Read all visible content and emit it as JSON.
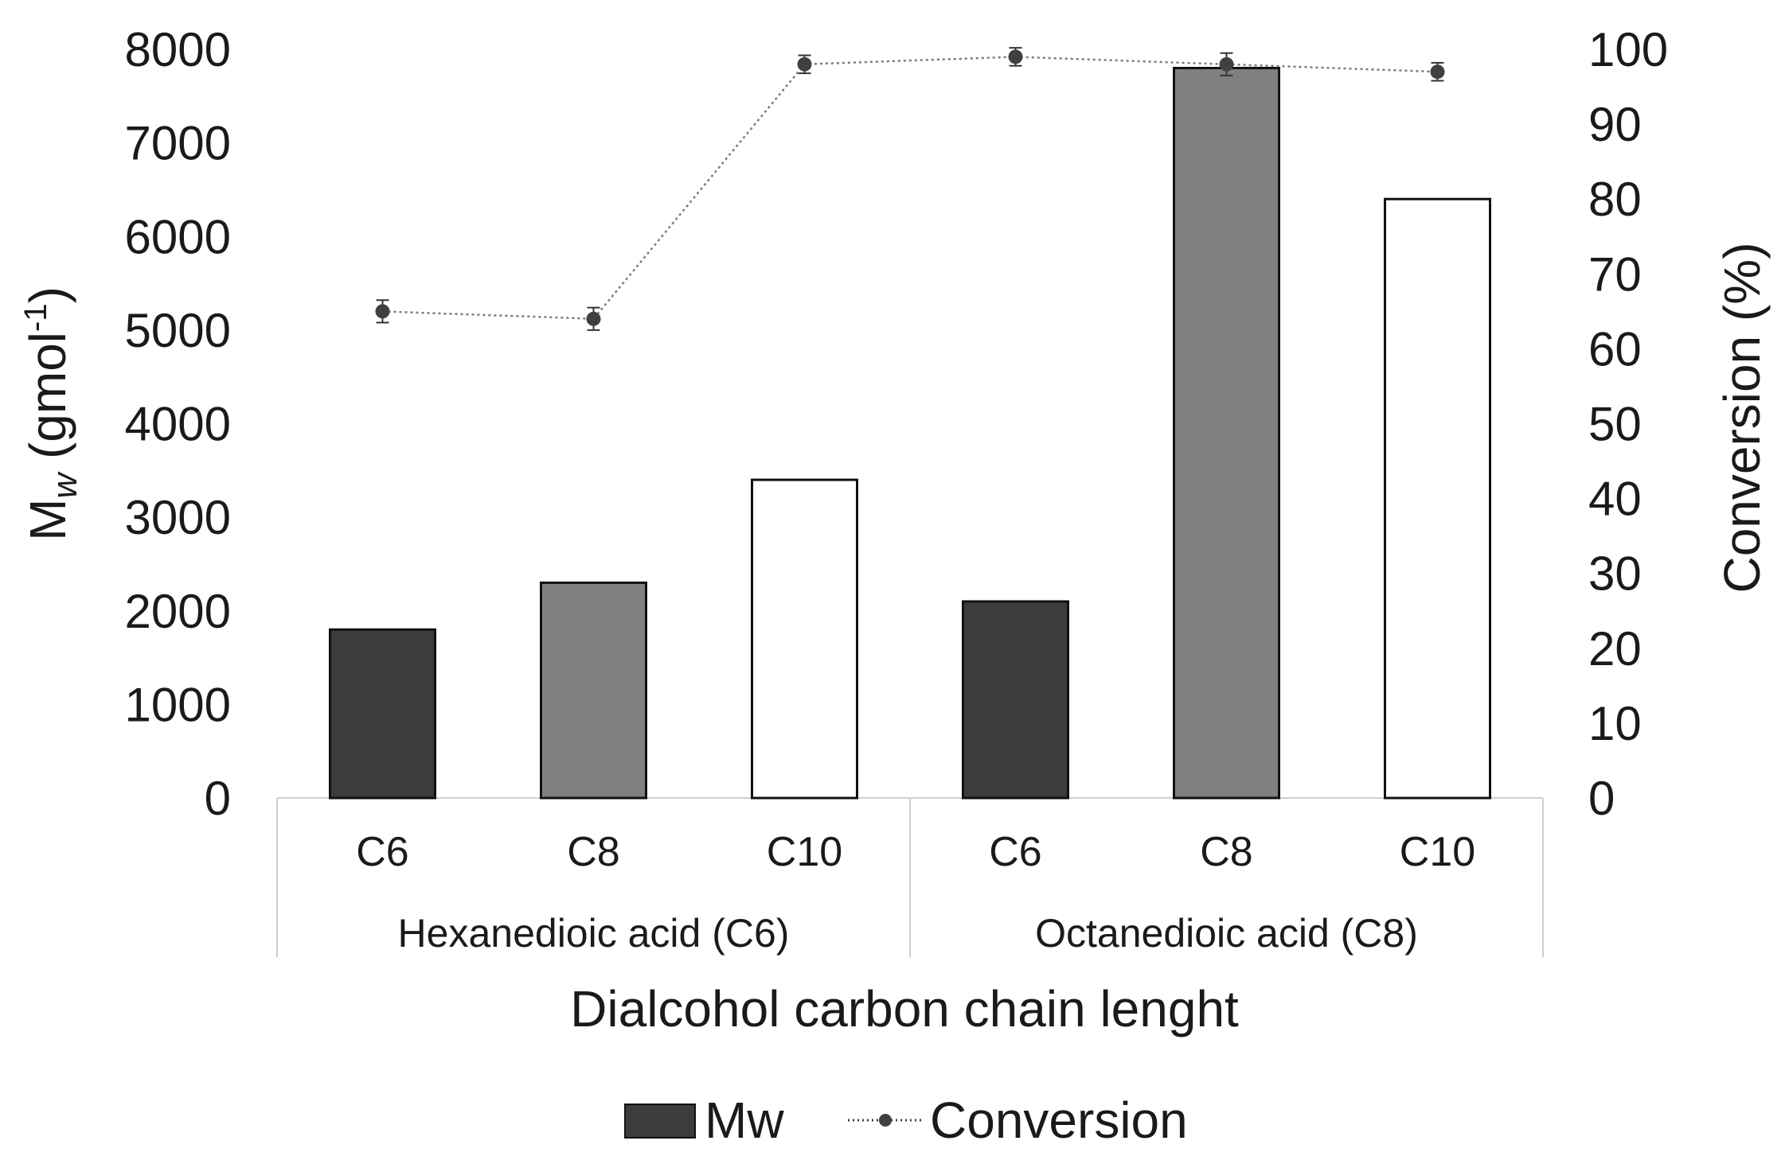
{
  "chart_data": {
    "type": "bar+line",
    "title": "",
    "xlabel": "Dialcohol carbon chain lenght",
    "ylabel_left": {
      "main": "M",
      "sub": "w",
      "unit": " (gmol",
      "sup": "-1",
      "close": ")"
    },
    "ylabel_right": "Conversion (%)",
    "y_left": {
      "lim": [
        0,
        8000
      ],
      "ticks": [
        "0",
        "1000",
        "2000",
        "3000",
        "4000",
        "5000",
        "6000",
        "7000",
        "8000"
      ]
    },
    "y_right": {
      "lim": [
        0,
        100
      ],
      "ticks": [
        "0",
        "10",
        "20",
        "30",
        "40",
        "50",
        "60",
        "70",
        "80",
        "90",
        "100"
      ]
    },
    "groups": [
      {
        "label": "Hexanedioic acid (C6)",
        "categories": [
          "C6",
          "C8",
          "C10"
        ]
      },
      {
        "label": "Octanedioic acid (C8)",
        "categories": [
          "C6",
          "C8",
          "C10"
        ]
      }
    ],
    "bars": {
      "name": "Mw",
      "values": [
        1800,
        2300,
        3400,
        2100,
        7800,
        6400
      ],
      "fills": [
        "#3c3c3c",
        "#808080",
        "#ffffff",
        "#3c3c3c",
        "#808080",
        "#ffffff"
      ]
    },
    "line": {
      "name": "Conversion",
      "values": [
        65,
        64,
        98,
        99,
        98,
        97
      ],
      "errors": [
        1.5,
        1.5,
        1.2,
        1.2,
        1.5,
        1.2
      ],
      "color": "#404040"
    },
    "legend": [
      {
        "label": "Mw",
        "kind": "bar",
        "color": "#3c3c3c"
      },
      {
        "label": "Conversion",
        "kind": "line",
        "color": "#404040"
      }
    ]
  }
}
